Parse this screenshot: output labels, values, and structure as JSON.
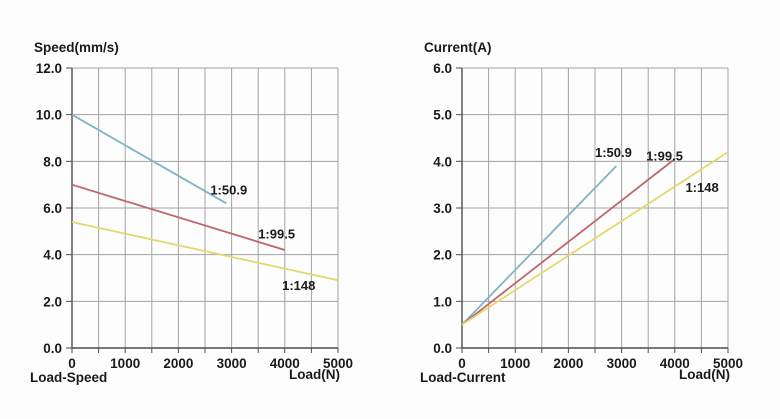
{
  "colors": {
    "blue": "#7db4c6",
    "red": "#bf666c",
    "yellow": "#e5d76f",
    "grid": "#a2a2a2",
    "axis": "#4d4d4d",
    "text": "#1a1a1a",
    "background": "#fdfdfd"
  },
  "chart_data": [
    {
      "type": "line",
      "title": "Speed(mm/s)",
      "ylabel": "Speed(mm/s)",
      "xlabel": "Load(N)",
      "corner_label": "Load-Speed",
      "xlim": [
        0,
        5000
      ],
      "ylim": [
        0,
        12
      ],
      "x_minor_step": 500,
      "x_tick_values": [
        0,
        1000,
        2000,
        3000,
        4000,
        5000
      ],
      "x_tick_labels": [
        "0",
        "1000",
        "2000",
        "3000",
        "4000",
        "5000"
      ],
      "y_tick_values": [
        0,
        2,
        4,
        6,
        8,
        10,
        12
      ],
      "y_tick_labels": [
        "0.0",
        "2.0",
        "4.0",
        "6.0",
        "8.0",
        "10.0",
        "12.0"
      ],
      "grid": true,
      "legend_position": "inline-labels",
      "series": [
        {
          "name": "1:50.9",
          "color": "blue",
          "points": [
            [
              0,
              10.0
            ],
            [
              2900,
              6.2
            ]
          ],
          "label_pos": [
            2600,
            6.8
          ]
        },
        {
          "name": "1:99.5",
          "color": "red",
          "points": [
            [
              0,
              7.0
            ],
            [
              4000,
              4.2
            ]
          ],
          "label_pos": [
            3500,
            4.9
          ]
        },
        {
          "name": "1:148",
          "color": "yellow",
          "points": [
            [
              0,
              5.4
            ],
            [
              5000,
              2.9
            ]
          ],
          "label_pos": [
            3950,
            2.7
          ]
        }
      ]
    },
    {
      "type": "line",
      "title": "Current(A)",
      "ylabel": "Current(A)",
      "xlabel": "Load(N)",
      "corner_label": "Load-Current",
      "xlim": [
        0,
        5000
      ],
      "ylim": [
        0,
        6
      ],
      "x_minor_step": 500,
      "x_tick_values": [
        0,
        1000,
        2000,
        3000,
        4000,
        5000
      ],
      "x_tick_labels": [
        "0",
        "1000",
        "2000",
        "3000",
        "4000",
        "5000"
      ],
      "y_tick_values": [
        0,
        1,
        2,
        3,
        4,
        5,
        6
      ],
      "y_tick_labels": [
        "0.0",
        "1.0",
        "2.0",
        "3.0",
        "4.0",
        "5.0",
        "6.0"
      ],
      "grid": true,
      "legend_position": "inline-labels",
      "series": [
        {
          "name": "1:50.9",
          "color": "blue",
          "points": [
            [
              0,
              0.5
            ],
            [
              2900,
              3.9
            ]
          ],
          "label_pos": [
            2500,
            4.2
          ]
        },
        {
          "name": "1:99.5",
          "color": "red",
          "points": [
            [
              0,
              0.5
            ],
            [
              4000,
              4.05
            ]
          ],
          "label_pos": [
            3460,
            4.12
          ]
        },
        {
          "name": "1:148",
          "color": "yellow",
          "points": [
            [
              0,
              0.5
            ],
            [
              5000,
              4.2
            ]
          ],
          "label_pos": [
            4200,
            3.45
          ]
        }
      ]
    }
  ]
}
